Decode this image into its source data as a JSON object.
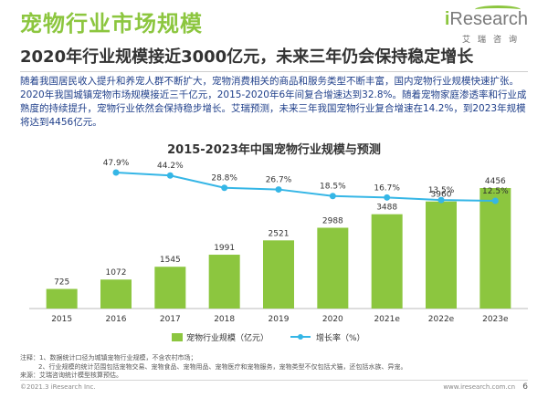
{
  "header": {
    "title": "宠物行业市场规模",
    "subtitle": "2020年行业规模接近3000亿元，未来三年仍会保持稳定增长",
    "logo_main_prefix": "i",
    "logo_main_rest": "Research",
    "logo_sub": "艾瑞咨询"
  },
  "body": {
    "paragraph": "随着我国居民收入提升和养宠人群不断扩大，宠物消费相关的商品和服务类型不断丰富，国内宠物行业规模快速扩张。2020年我国城镇宠物市场规模接近三千亿元，2015-2020年6年间复合增速达到32.8%。随着宠物家庭渗透率和行业成熟度的持续提升，宠物行业依然会保持稳步增长。艾瑞预测，未来三年我国宠物行业复合增速在14.2%，到2023年规模将达到4456亿元。"
  },
  "chart_data": {
    "type": "bar",
    "title": "2015-2023年中国宠物行业规模与预测",
    "categories": [
      "2015",
      "2016",
      "2017",
      "2018",
      "2019",
      "2020",
      "2021e",
      "2022e",
      "2023e"
    ],
    "series": [
      {
        "name": "宠物行业规模（亿元）",
        "type": "bar",
        "values": [
          725,
          1072,
          1545,
          1991,
          2521,
          2988,
          3488,
          3960,
          4456
        ],
        "labels": [
          "725",
          "1072",
          "1545",
          "1991",
          "2521",
          "2988",
          "3488",
          "3960",
          "4456"
        ]
      },
      {
        "name": "增长率（%）",
        "type": "line",
        "values": [
          null,
          47.9,
          44.2,
          28.8,
          26.7,
          18.5,
          16.7,
          13.5,
          12.5
        ],
        "labels": [
          "",
          "47.9%",
          "44.2%",
          "28.8%",
          "26.7%",
          "18.5%",
          "16.7%",
          "13.5%",
          "12.5%"
        ]
      }
    ],
    "colors": {
      "bar_light": "#c7e08c",
      "bar": "#8cc63f",
      "line": "#35b6e6"
    },
    "legend": "bottom",
    "grid": false
  },
  "notes": {
    "line1": "注释：1、数据统计口径为城镇宠物行业规模，不含农村市场；",
    "line2": "2、行业规模的统计范围包括宠物交易、宠物食品、宠物用品、宠物医疗和宠物服务，宠物类型不仅包括犬猫，还包括水族、异宠。",
    "line3": "来源：艾瑞咨询统计模型核算预估。"
  },
  "footer": {
    "copyright": "©2021.3 iResearch Inc.",
    "website": "www.iresearch.com.cn",
    "page": "6"
  }
}
